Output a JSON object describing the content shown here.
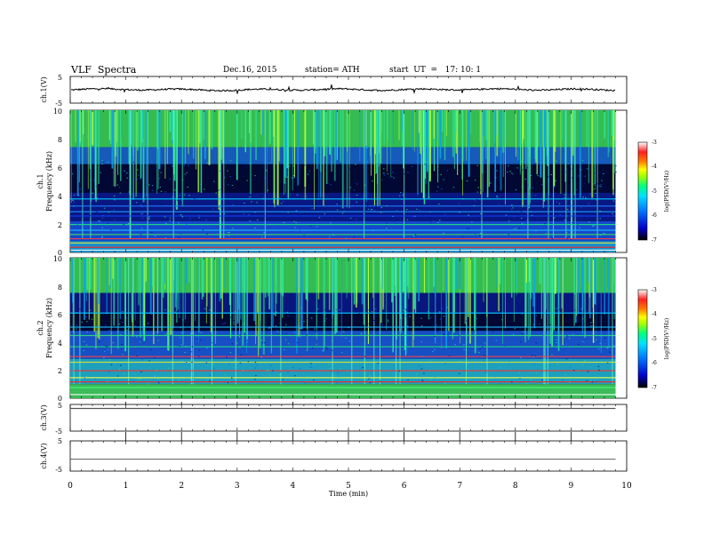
{
  "header": {
    "title": "VLF  Spectra",
    "date": "Dec.16, 2015",
    "station": "station= ATH",
    "start": "start  UT  =   17: 10: 1"
  },
  "colors": {
    "spectrogram_low": "#000000",
    "spectrogram_mid_low": "#1030d0",
    "spectrogram_mid": "#00c8e0",
    "spectrogram_high": "#30e040",
    "colorbar_stops": [
      "#000000",
      "#0000ff",
      "#00c0ff",
      "#00ff80",
      "#ffff00",
      "#ff8000",
      "#ff0000",
      "#ffffff"
    ]
  },
  "chart_data": [
    {
      "type": "line",
      "name": "ch1-waveform",
      "ylabel": "ch.1(V)",
      "ylim": [
        -5,
        5
      ],
      "yticks": [
        "5",
        "-5"
      ],
      "x": [
        0,
        1,
        2,
        3,
        4,
        5,
        6,
        7,
        8,
        9,
        9.8
      ],
      "y": [
        0.1,
        0.2,
        0.0,
        -0.1,
        0.1,
        0.1,
        0.0,
        0.2,
        0.1,
        0.1,
        0.0
      ]
    },
    {
      "type": "heatmap",
      "name": "ch1-spectrogram",
      "ylabel": "ch.1\nFrequency  (kHz)",
      "ylabel_line1": "ch.1",
      "ylabel_line2": "Frequency  (kHz)",
      "ylim": [
        0,
        10
      ],
      "yticks": [
        "10",
        "8",
        "6",
        "4",
        "2",
        "0"
      ],
      "colorbar": {
        "label": "log(PSD(V²/Hz)",
        "range": [
          -7,
          -3
        ],
        "ticks": [
          "-3",
          "-4",
          "-5",
          "-6",
          "-7"
        ]
      }
    },
    {
      "type": "heatmap",
      "name": "ch2-spectrogram",
      "ylabel_line1": "ch.2",
      "ylabel_line2": "Frequency  (kHz)",
      "ylim": [
        0,
        10
      ],
      "yticks": [
        "10",
        "8",
        "6",
        "4",
        "2",
        "0"
      ],
      "colorbar": {
        "label": "log(PSD(V²/Hz)",
        "range": [
          -7,
          -3
        ],
        "ticks": [
          "-3",
          "-4",
          "-5",
          "-6",
          "-7"
        ]
      }
    },
    {
      "type": "line",
      "name": "ch3-waveform",
      "ylabel": "ch.3(V)",
      "ylim": [
        -5,
        5
      ],
      "yticks": [
        "5",
        "-5"
      ],
      "x": [
        0,
        9.8
      ],
      "y": [
        3.5,
        3.5
      ]
    },
    {
      "type": "line",
      "name": "ch4-waveform",
      "ylabel": "ch.4(V)",
      "ylim": [
        -5,
        5
      ],
      "yticks": [
        "5",
        "-5"
      ],
      "x": [
        0,
        9.8
      ],
      "y": [
        -1.0,
        -1.0
      ]
    }
  ],
  "xaxis": {
    "label": "Time  (min)",
    "xlim": [
      0,
      10
    ],
    "ticks": [
      "0",
      "1",
      "2",
      "3",
      "4",
      "5",
      "6",
      "7",
      "8",
      "9",
      "10"
    ]
  }
}
